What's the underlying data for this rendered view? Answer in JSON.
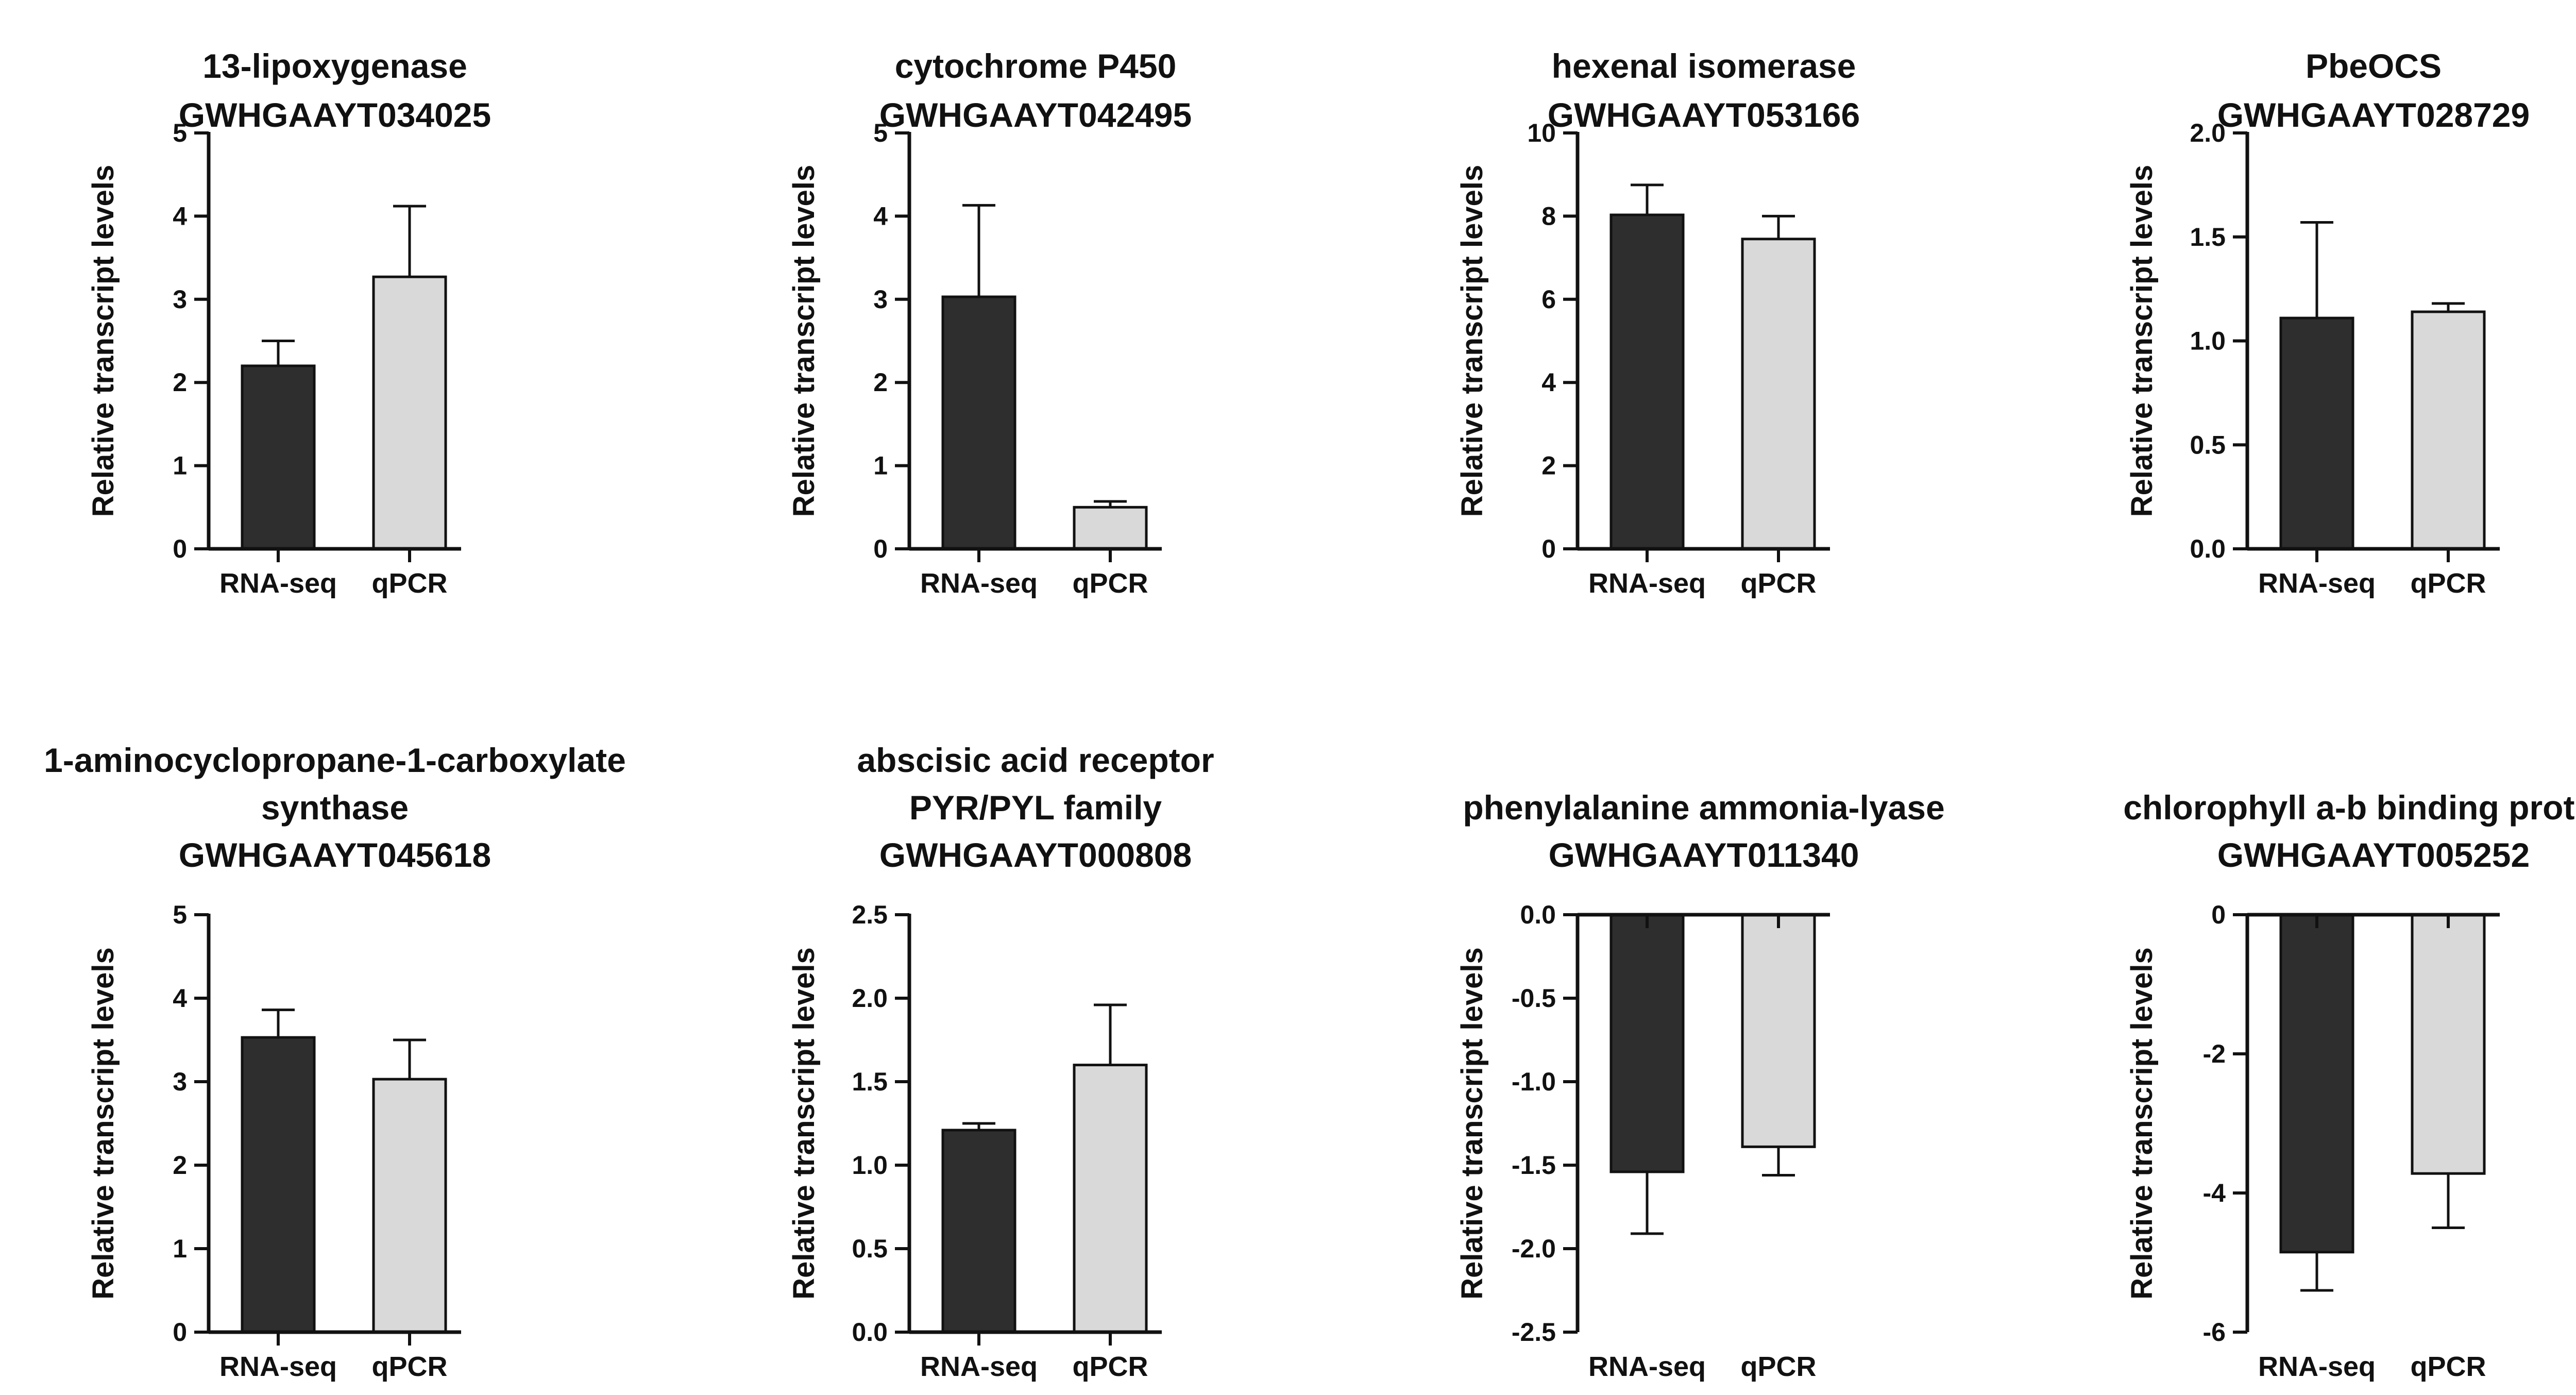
{
  "figure": {
    "colors": {
      "RNA-seq": "#2e2e2e",
      "qPCR": "#d9d9d9",
      "axis": "#111111"
    }
  },
  "chart_data": [
    {
      "type": "bar",
      "title_lines": [
        "13-lipoxygenase",
        "GWHGAAYT034025"
      ],
      "xlabel": "",
      "ylabel": "Relative transcript levels",
      "categories": [
        "RNA-seq",
        "qPCR"
      ],
      "values": [
        2.2,
        3.27
      ],
      "errors": [
        0.3,
        0.85
      ],
      "ylim": [
        0,
        5
      ],
      "yticks": [
        0,
        1,
        2,
        3,
        4,
        5
      ],
      "ytick_labels": [
        "0",
        "1",
        "2",
        "3",
        "4",
        "5"
      ]
    },
    {
      "type": "bar",
      "title_lines": [
        "cytochrome P450",
        "GWHGAAYT042495"
      ],
      "xlabel": "",
      "ylabel": "Relative transcript levels",
      "categories": [
        "RNA-seq",
        "qPCR"
      ],
      "values": [
        3.03,
        0.5
      ],
      "errors": [
        1.1,
        0.07
      ],
      "ylim": [
        0,
        5
      ],
      "yticks": [
        0,
        1,
        2,
        3,
        4,
        5
      ],
      "ytick_labels": [
        "0",
        "1",
        "2",
        "3",
        "4",
        "5"
      ]
    },
    {
      "type": "bar",
      "title_lines": [
        "hexenal isomerase",
        "GWHGAAYT053166"
      ],
      "xlabel": "",
      "ylabel": "Relative transcript levels",
      "categories": [
        "RNA-seq",
        "qPCR"
      ],
      "values": [
        8.03,
        7.45
      ],
      "errors": [
        0.72,
        0.55
      ],
      "ylim": [
        0,
        10
      ],
      "yticks": [
        0,
        2,
        4,
        6,
        8,
        10
      ],
      "ytick_labels": [
        "0",
        "2",
        "4",
        "6",
        "8",
        "10"
      ]
    },
    {
      "type": "bar",
      "title_lines": [
        "PbeOCS",
        "GWHGAAYT028729"
      ],
      "xlabel": "",
      "ylabel": "Relative transcript levels",
      "categories": [
        "RNA-seq",
        "qPCR"
      ],
      "values": [
        1.11,
        1.14
      ],
      "errors": [
        0.46,
        0.04
      ],
      "ylim": [
        0,
        2
      ],
      "yticks": [
        0,
        0.5,
        1,
        1.5,
        2
      ],
      "ytick_labels": [
        "0.0",
        "0.5",
        "1.0",
        "1.5",
        "2.0"
      ]
    },
    {
      "type": "bar",
      "title_lines": [
        "1-aminocyclopropane-1-carboxylate",
        "synthase",
        "GWHGAAYT045618"
      ],
      "xlabel": "",
      "ylabel": "Relative transcript levels",
      "categories": [
        "RNA-seq",
        "qPCR"
      ],
      "values": [
        3.53,
        3.03
      ],
      "errors": [
        0.33,
        0.47
      ],
      "ylim": [
        0,
        5
      ],
      "yticks": [
        0,
        1,
        2,
        3,
        4,
        5
      ],
      "ytick_labels": [
        "0",
        "1",
        "2",
        "3",
        "4",
        "5"
      ]
    },
    {
      "type": "bar",
      "title_lines": [
        "abscisic acid receptor",
        "PYR/PYL family",
        "GWHGAAYT000808"
      ],
      "xlabel": "",
      "ylabel": "Relative transcript levels",
      "categories": [
        "RNA-seq",
        "qPCR"
      ],
      "values": [
        1.21,
        1.6
      ],
      "errors": [
        0.04,
        0.36
      ],
      "ylim": [
        0,
        2.5
      ],
      "yticks": [
        0,
        0.5,
        1,
        1.5,
        2,
        2.5
      ],
      "ytick_labels": [
        "0.0",
        "0.5",
        "1.0",
        "1.5",
        "2.0",
        "2.5"
      ]
    },
    {
      "type": "bar",
      "title_lines": [
        "phenylalanine ammonia-lyase",
        "GWHGAAYT011340"
      ],
      "xlabel": "",
      "ylabel": "Relative transcript levels",
      "categories": [
        "RNA-seq",
        "qPCR"
      ],
      "values": [
        -1.54,
        -1.39
      ],
      "errors": [
        0.37,
        0.17
      ],
      "ylim": [
        -2.5,
        0
      ],
      "yticks": [
        0,
        -0.5,
        -1,
        -1.5,
        -2,
        -2.5
      ],
      "ytick_labels": [
        "0.0",
        "-0.5",
        "-1.0",
        "-1.5",
        "-2.0",
        "-2.5"
      ]
    },
    {
      "type": "bar",
      "title_lines": [
        "chlorophyll a-b binding protein",
        "GWHGAAYT005252"
      ],
      "xlabel": "",
      "ylabel": "Relative transcript levels",
      "categories": [
        "RNA-seq",
        "qPCR"
      ],
      "values": [
        -4.85,
        -3.72
      ],
      "errors": [
        0.55,
        0.78
      ],
      "ylim": [
        -6,
        0
      ],
      "yticks": [
        0,
        -2,
        -4,
        -6
      ],
      "ytick_labels": [
        "0",
        "-2",
        "-4",
        "-6"
      ]
    }
  ]
}
